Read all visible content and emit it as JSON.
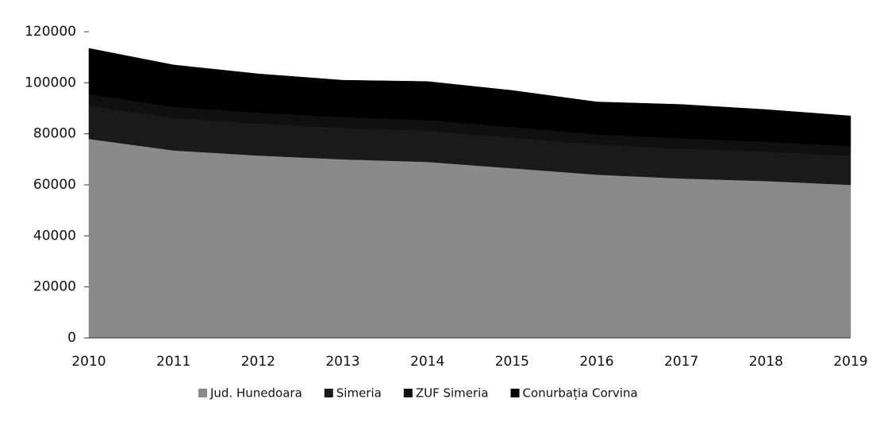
{
  "chart_data": {
    "type": "stacked_area",
    "categories": [
      "2010",
      "2011",
      "2012",
      "2013",
      "2014",
      "2015",
      "2016",
      "2017",
      "2018",
      "2019"
    ],
    "series": [
      {
        "name": "Jud. Hunedoara",
        "color": "#8a8a8a",
        "values": [
          78000,
          73500,
          71500,
          70000,
          69000,
          66500,
          64000,
          62500,
          61500,
          60000
        ]
      },
      {
        "name": "Simeria",
        "color": "#1a1a1a",
        "values": [
          13000,
          12700,
          12500,
          12300,
          12200,
          12000,
          11800,
          11700,
          11500,
          11400
        ]
      },
      {
        "name": "ZUF Simeria",
        "color": "#101010",
        "values": [
          4500,
          4400,
          4300,
          4200,
          4200,
          4100,
          4000,
          4000,
          3900,
          3800
        ]
      },
      {
        "name": "Conurbația Corvina",
        "color": "#000000",
        "values": [
          18000,
          16400,
          15200,
          14500,
          15100,
          14400,
          12700,
          13300,
          12600,
          11800
        ]
      }
    ],
    "ylim": [
      0,
      120000
    ],
    "yticks": [
      0,
      20000,
      40000,
      60000,
      80000,
      100000,
      120000
    ],
    "legend": "bottom"
  }
}
